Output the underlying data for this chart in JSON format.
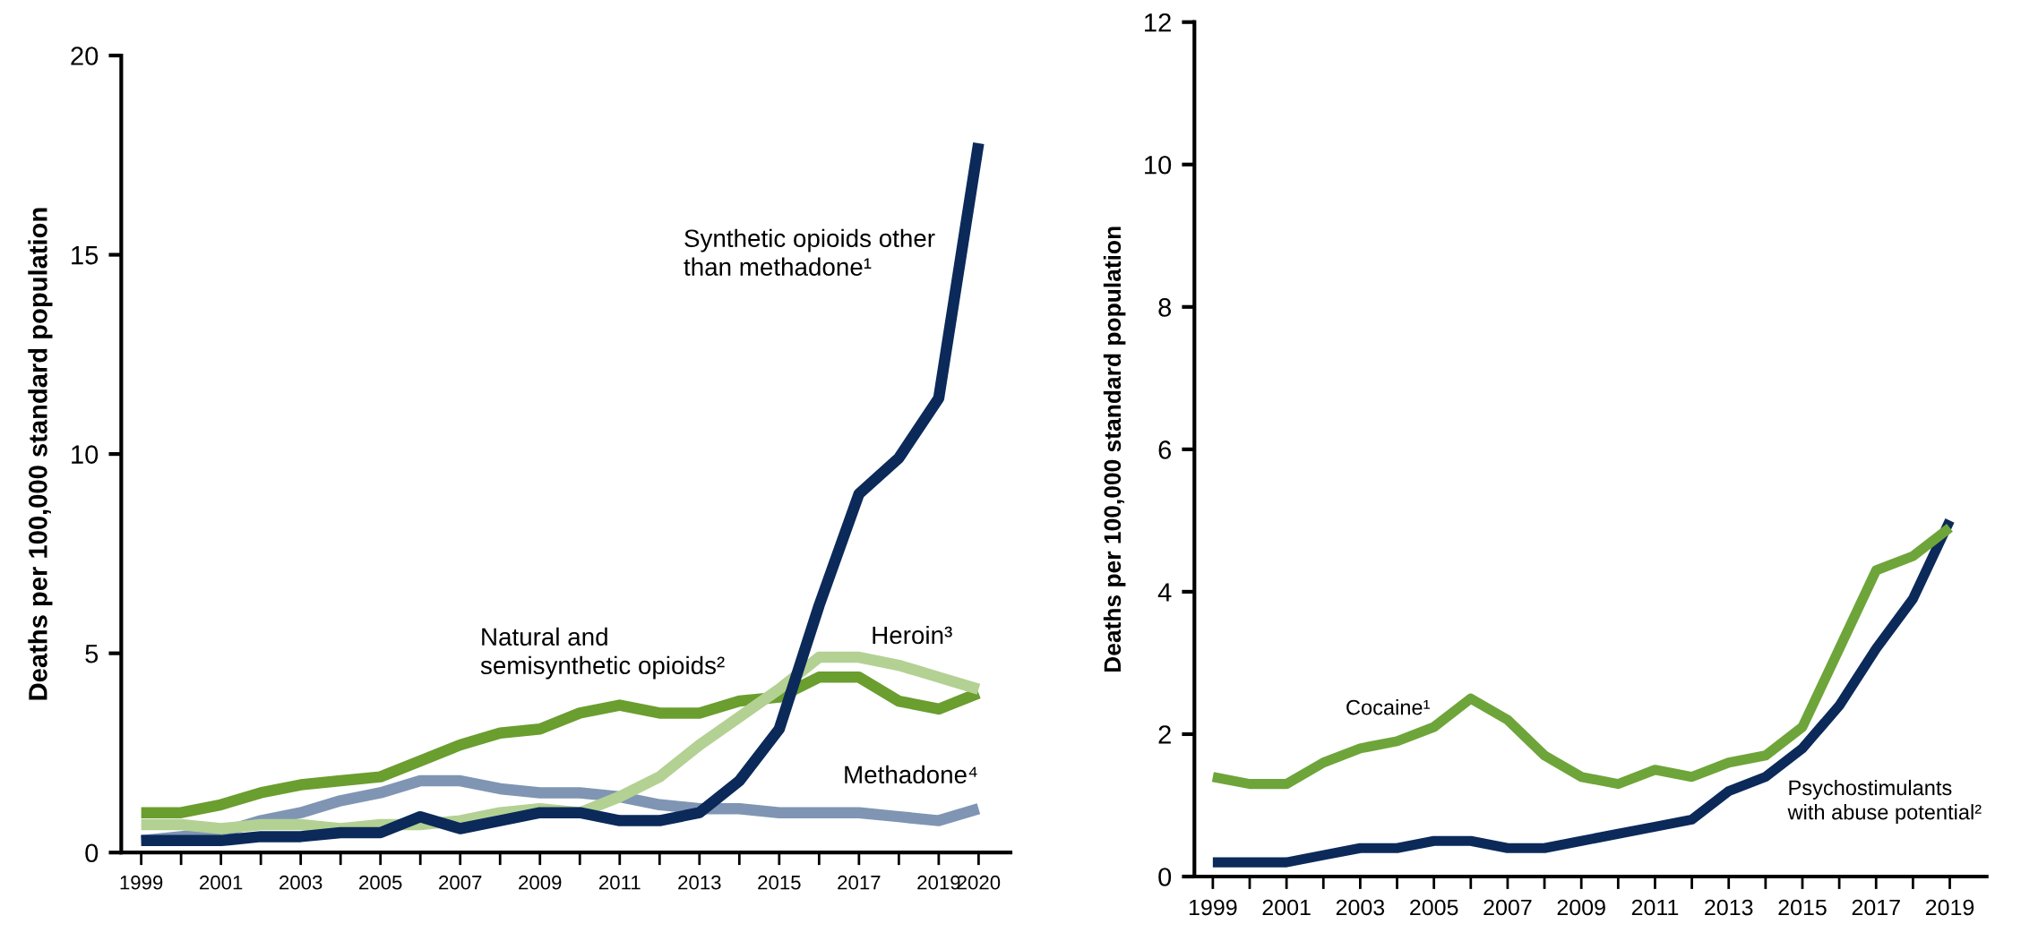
{
  "chart_data": [
    {
      "type": "line",
      "ylabel": "Deaths per 100,000 standard population",
      "x": [
        1999,
        2000,
        2001,
        2002,
        2003,
        2004,
        2005,
        2006,
        2007,
        2008,
        2009,
        2010,
        2011,
        2012,
        2013,
        2014,
        2015,
        2016,
        2017,
        2018,
        2019,
        2020
      ],
      "series": [
        {
          "name": "Methadone⁴",
          "color": "#7f95b3",
          "values": [
            0.3,
            0.4,
            0.5,
            0.8,
            1.0,
            1.3,
            1.5,
            1.8,
            1.8,
            1.6,
            1.5,
            1.5,
            1.4,
            1.2,
            1.1,
            1.1,
            1.0,
            1.0,
            1.0,
            0.9,
            0.8,
            1.1
          ]
        },
        {
          "name": "Natural and\nsemisynthetic opioids²",
          "color": "#6a9e2f",
          "values": [
            1.0,
            1.0,
            1.2,
            1.5,
            1.7,
            1.8,
            1.9,
            2.3,
            2.7,
            3.0,
            3.1,
            3.5,
            3.7,
            3.5,
            3.5,
            3.8,
            3.9,
            4.4,
            4.4,
            3.8,
            3.6,
            4.0
          ]
        },
        {
          "name": "Heroin³",
          "color": "#b3d193",
          "values": [
            0.7,
            0.7,
            0.6,
            0.7,
            0.7,
            0.6,
            0.7,
            0.7,
            0.8,
            1.0,
            1.1,
            1.0,
            1.4,
            1.9,
            2.7,
            3.4,
            4.1,
            4.9,
            4.9,
            4.7,
            4.4,
            4.1
          ]
        },
        {
          "name": "Synthetic opioids other\nthan methadone¹",
          "color": "#0b2a5a",
          "values": [
            0.3,
            0.3,
            0.3,
            0.4,
            0.4,
            0.5,
            0.5,
            0.9,
            0.6,
            0.8,
            1.0,
            1.0,
            0.8,
            0.8,
            1.0,
            1.8,
            3.1,
            6.2,
            9.0,
            9.9,
            11.4,
            17.8
          ]
        }
      ],
      "xlim": [
        1998.5,
        2020.8
      ],
      "ylim": [
        0,
        20
      ],
      "yticks": [
        0,
        5,
        10,
        15,
        20
      ],
      "xticks": [
        1999,
        {
          "value": 2000,
          "label": null
        },
        2001,
        {
          "value": 2002,
          "label": null
        },
        2003,
        {
          "value": 2004,
          "label": null
        },
        2005,
        {
          "value": 2006,
          "label": null
        },
        2007,
        {
          "value": 2008,
          "label": null
        },
        2009,
        {
          "value": 2010,
          "label": null
        },
        2011,
        {
          "value": 2012,
          "label": null
        },
        2013,
        {
          "value": 2014,
          "label": null
        },
        2015,
        {
          "value": 2016,
          "label": null
        },
        2017,
        {
          "value": 2018,
          "label": null
        },
        2019,
        2020
      ],
      "grid": false,
      "legend": false,
      "marker": "none",
      "line_style": "solid"
    },
    {
      "type": "line",
      "ylabel": "Deaths per 100,000 standard population",
      "x": [
        1999,
        2000,
        2001,
        2002,
        2003,
        2004,
        2005,
        2006,
        2007,
        2008,
        2009,
        2010,
        2011,
        2012,
        2013,
        2014,
        2015,
        2016,
        2017,
        2018,
        2019
      ],
      "series": [
        {
          "name": "Psychostimulants\nwith abuse potential²",
          "color": "#0b2a5a",
          "values": [
            0.2,
            0.2,
            0.2,
            0.3,
            0.4,
            0.4,
            0.5,
            0.5,
            0.4,
            0.4,
            0.5,
            0.6,
            0.7,
            0.8,
            1.2,
            1.4,
            1.8,
            2.4,
            3.2,
            3.9,
            5.0
          ]
        },
        {
          "name": "Cocaine¹",
          "color": "#6ea53a",
          "values": [
            1.4,
            1.3,
            1.3,
            1.6,
            1.8,
            1.9,
            2.1,
            2.5,
            2.2,
            1.7,
            1.4,
            1.3,
            1.5,
            1.4,
            1.6,
            1.7,
            2.1,
            3.2,
            4.3,
            4.5,
            4.9
          ]
        }
      ],
      "xlim": [
        1998.5,
        2020.0
      ],
      "ylim": [
        0,
        12
      ],
      "yticks": [
        0,
        2,
        4,
        6,
        8,
        10,
        12
      ],
      "xticks": [
        1999,
        {
          "value": 2000,
          "label": null
        },
        2001,
        {
          "value": 2002,
          "label": null
        },
        2003,
        {
          "value": 2004,
          "label": null
        },
        2005,
        {
          "value": 2006,
          "label": null
        },
        2007,
        {
          "value": 2008,
          "label": null
        },
        2009,
        {
          "value": 2010,
          "label": null
        },
        2011,
        {
          "value": 2012,
          "label": null
        },
        2013,
        {
          "value": 2014,
          "label": null
        },
        2015,
        {
          "value": 2016,
          "label": null
        },
        2017,
        {
          "value": 2018,
          "label": null
        },
        2019
      ],
      "grid": false,
      "legend": false,
      "marker": "none",
      "line_style": "solid"
    }
  ]
}
